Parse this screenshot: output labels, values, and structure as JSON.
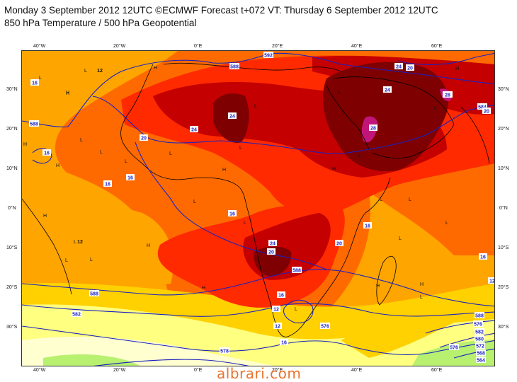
{
  "header": {
    "line1": "Monday 3 September 2012 12UTC ©ECMWF Forecast t+072 VT: Thursday 6 September 2012 12UTC",
    "line2": "850 hPa Temperature / 500 hPa Geopotential"
  },
  "axes": {
    "lon_ticks_top": [
      "40°W",
      "20°W",
      "0°E",
      "20°E",
      "40°E",
      "60°E"
    ],
    "lon_ticks_bottom": [
      "40°W",
      "20°W",
      "0°E",
      "20°E",
      "40°E",
      "60°E"
    ],
    "lat_ticks_left": [
      "30°N",
      "20°N",
      "10°N",
      "0°N",
      "10°S",
      "20°S",
      "30°S"
    ],
    "lat_ticks_right": [
      "30°N",
      "20°N",
      "10°N",
      "0°N",
      "10°S",
      "20°S",
      "30°S"
    ]
  },
  "colors": {
    "band_28_plus": "#c2157a",
    "band_24_28": "#7e0000",
    "band_20_24": "#c40000",
    "band_16_20": "#ff2a00",
    "band_12_16": "#ff6a00",
    "band_8_12": "#ffa500",
    "band_4_8": "#ffd100",
    "band_0_4": "#ffff80",
    "band_cold": "#ffffd0",
    "band_green": "#b8f070",
    "contour_line": "#1a22c0",
    "coastline": "#000000"
  },
  "contour_labels": [
    {
      "text": "16"
    },
    {
      "text": "12"
    },
    {
      "text": "588"
    },
    {
      "text": "16"
    },
    {
      "text": "20"
    },
    {
      "text": "16"
    },
    {
      "text": "16"
    },
    {
      "text": "16"
    },
    {
      "text": "24"
    },
    {
      "text": "24"
    },
    {
      "text": "588"
    },
    {
      "text": "592"
    },
    {
      "text": "24"
    },
    {
      "text": "20"
    },
    {
      "text": "24"
    },
    {
      "text": "28"
    },
    {
      "text": "28"
    },
    {
      "text": "584"
    },
    {
      "text": "20"
    },
    {
      "text": "16"
    },
    {
      "text": "12"
    },
    {
      "text": "20"
    },
    {
      "text": "24"
    },
    {
      "text": "20"
    },
    {
      "text": "588"
    },
    {
      "text": "16"
    },
    {
      "text": "588"
    },
    {
      "text": "16"
    },
    {
      "text": "12"
    },
    {
      "text": "12"
    },
    {
      "text": "588"
    },
    {
      "text": "582"
    },
    {
      "text": "576"
    },
    {
      "text": "578"
    },
    {
      "text": "16"
    },
    {
      "text": "12"
    },
    {
      "text": "576"
    },
    {
      "text": "582"
    },
    {
      "text": "580"
    },
    {
      "text": "576"
    },
    {
      "text": "572"
    },
    {
      "text": "568"
    },
    {
      "text": "564"
    }
  ],
  "pressure_markers": [
    {
      "text": "L"
    },
    {
      "text": "L"
    },
    {
      "text": "H"
    },
    {
      "text": "H"
    },
    {
      "text": "L"
    },
    {
      "text": "H"
    },
    {
      "text": "L"
    },
    {
      "text": "H"
    },
    {
      "text": "L"
    },
    {
      "text": "L"
    },
    {
      "text": "H"
    },
    {
      "text": "L"
    },
    {
      "text": "L"
    },
    {
      "text": "L"
    },
    {
      "text": "H"
    },
    {
      "text": "L"
    },
    {
      "text": "H"
    },
    {
      "text": "L"
    },
    {
      "text": "L"
    },
    {
      "text": "L"
    },
    {
      "text": "L"
    },
    {
      "text": "L"
    },
    {
      "text": "H"
    },
    {
      "text": "H"
    },
    {
      "text": "H"
    },
    {
      "text": "L"
    },
    {
      "text": "L"
    },
    {
      "text": "L"
    },
    {
      "text": "H"
    },
    {
      "text": "H"
    },
    {
      "text": "L"
    },
    {
      "text": "L"
    },
    {
      "text": "L"
    },
    {
      "text": "H"
    },
    {
      "text": "L"
    }
  ],
  "watermark": "albrari.com"
}
